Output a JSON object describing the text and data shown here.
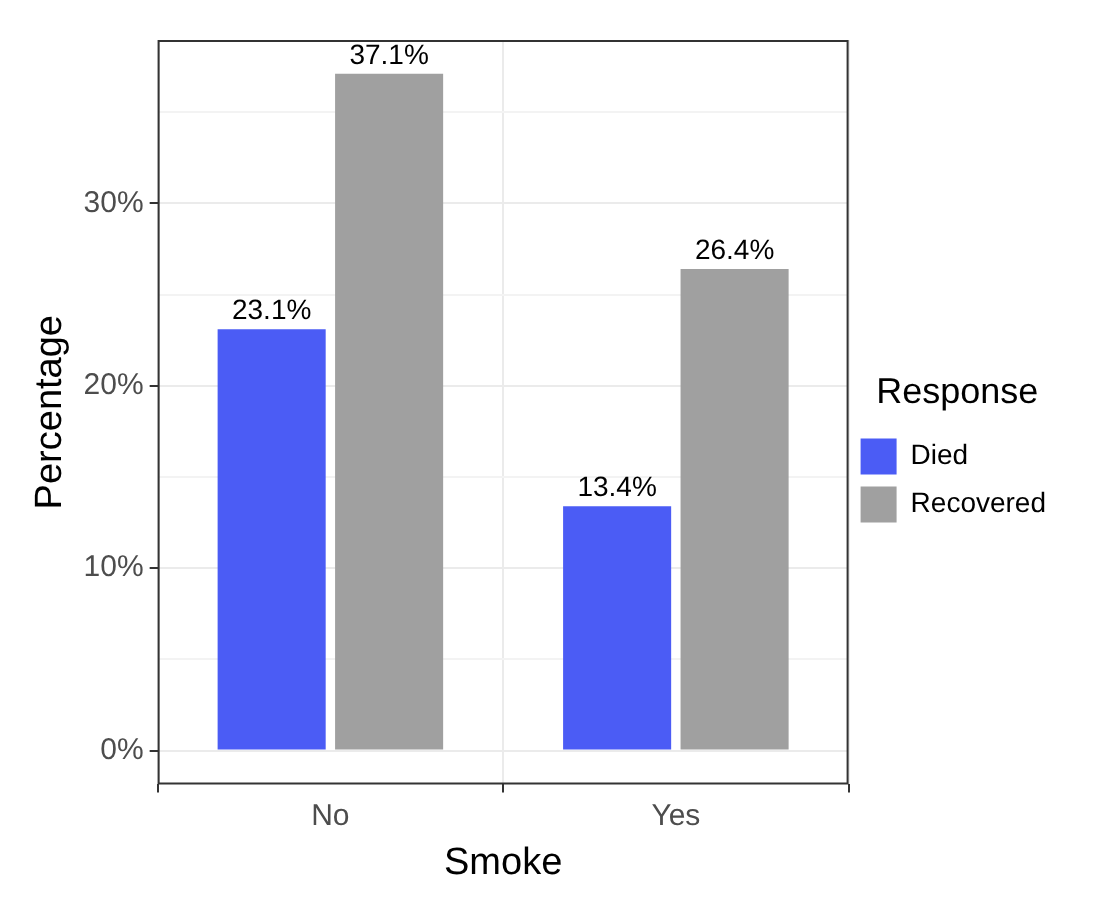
{
  "chart_data": {
    "type": "bar",
    "xlabel": "Smoke",
    "ylabel": "Percentage",
    "legend_title": "Response",
    "categories": [
      "No",
      "Yes"
    ],
    "series": [
      {
        "name": "Died",
        "color": "#4b5cf5",
        "values": [
          23.1,
          13.4
        ],
        "value_labels": [
          "23.1%",
          "13.4%"
        ]
      },
      {
        "name": "Recovered",
        "color": "#a0a0a0",
        "values": [
          37.1,
          26.4
        ],
        "value_labels": [
          "37.1%",
          "26.4%"
        ]
      }
    ],
    "ylim": [
      -1.855,
      38.955
    ],
    "yticks": [
      {
        "value": 0,
        "label": "0%"
      },
      {
        "value": 5,
        "label": null
      },
      {
        "value": 10,
        "label": "10%"
      },
      {
        "value": 15,
        "label": null
      },
      {
        "value": 20,
        "label": "20%"
      },
      {
        "value": 25,
        "label": null
      },
      {
        "value": 30,
        "label": "30%"
      },
      {
        "value": 35,
        "label": null
      }
    ],
    "grid": true,
    "legend": "right"
  }
}
